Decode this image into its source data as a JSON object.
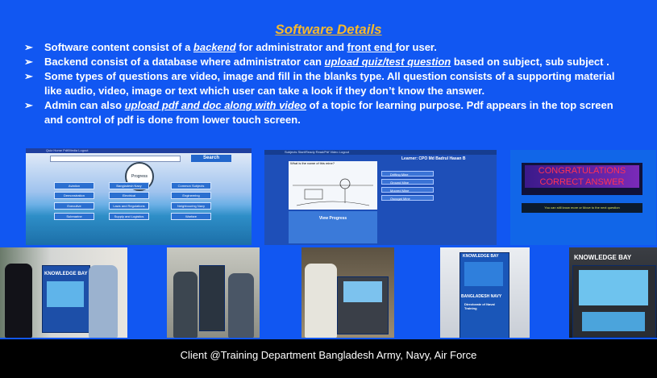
{
  "title": "Software Details",
  "bullets": {
    "b1": {
      "pre": "Software content consist of a ",
      "em1": "backend",
      "mid": " for administrator and ",
      "u1": "front end ",
      "post": "for user."
    },
    "b2": {
      "pre": "Backend consist of a database where administrator can ",
      "em1": "upload quiz/test question",
      "post": " based on subject, sub subject ."
    },
    "b3": {
      "line1": "Some types of questions are video, image and fill in the blanks type. All question consists of a supporting material",
      "line2": "like audio, video, image or text which user can take a look if they don’t know the answer."
    },
    "b4": {
      "pre": " Admin can also ",
      "em1": "upload pdf and doc along with video",
      "post": " of a topic for learning purpose. Pdf appears in the top screen",
      "line2": "and control of pdf is done from lower touch screen."
    }
  },
  "bullet_glyph": "➢",
  "shot1": {
    "nav": "Quiz Home   Pdf/Media   Logout",
    "search_btn": "Search",
    "progress": "Progress",
    "categories": [
      "Aviation",
      "Bangladesh Navy",
      "Common Subjects",
      "Demonstration",
      "Electrical",
      "Engineering",
      "Executive",
      "Laws and Regulations",
      "Neighbouring Navy",
      "Submarine",
      "Supply and Logistics",
      "Warfare"
    ]
  },
  "shot2": {
    "nav": "Subjects   Start/Ready   Read/Pdf Video   Logout",
    "learner": "Learner: CPO Md Badrul Hasan B",
    "question": "What is the name of this mine?",
    "options": [
      "Drifting Mine",
      "Ground Mine",
      "Moored Mine",
      "Oscugat Mine"
    ],
    "view_progress": "View Progress"
  },
  "shot3": {
    "congrats": "CONGRATULATIONS CORRECT ANSWER",
    "still": "You can still know more or Move to the next question"
  },
  "kiosk_brand": "KNOWLEDGE BAY",
  "kiosk_navy": "BANGLADESH NAVY",
  "kiosk_sub": "Directorate of Naval Training",
  "caption": "Client @Training Department Bangladesh Army, Navy, Air Force",
  "colors": {
    "background": "#1157f2",
    "title": "#f5b82e",
    "caption_bar": "#000000"
  }
}
